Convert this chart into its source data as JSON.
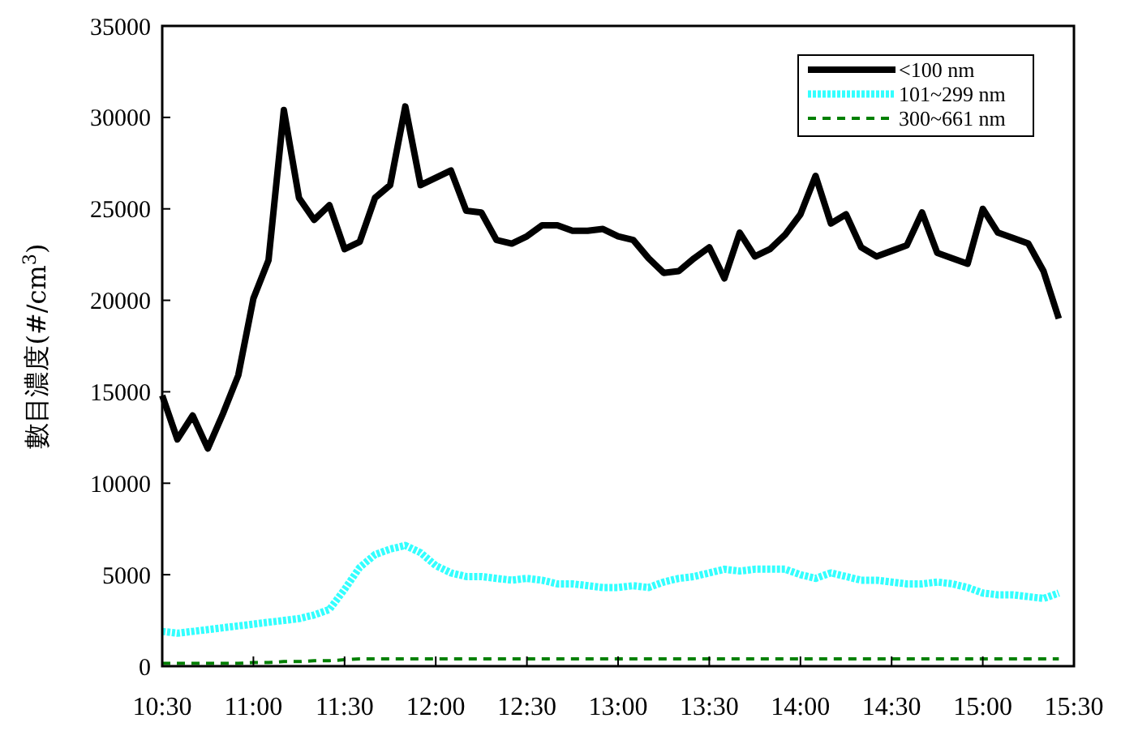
{
  "chart_data": {
    "type": "line",
    "ylabel": "數目濃度(#/cm$^{3}$)",
    "x": [
      10.5,
      10.583,
      10.667,
      10.75,
      10.833,
      10.917,
      11,
      11.083,
      11.167,
      11.25,
      11.333,
      11.417,
      11.5,
      11.583,
      11.667,
      11.75,
      11.833,
      11.917,
      12,
      12.083,
      12.167,
      12.25,
      12.333,
      12.417,
      12.5,
      12.583,
      12.667,
      12.75,
      12.833,
      12.917,
      13,
      13.083,
      13.167,
      13.25,
      13.333,
      13.417,
      13.5,
      13.583,
      13.667,
      13.75,
      13.833,
      13.917,
      14,
      14.083,
      14.167,
      14.25,
      14.333,
      14.417,
      14.5,
      14.583,
      14.667,
      14.75,
      14.833,
      14.917,
      15,
      15.083,
      15.167,
      15.25,
      15.333,
      15.417
    ],
    "series": [
      {
        "name": "<100 nm",
        "color": "#000000",
        "line_style": "solid",
        "values": [
          14800,
          12400,
          13700,
          11900,
          13800,
          15900,
          20100,
          22200,
          30400,
          25600,
          24400,
          25200,
          22800,
          23200,
          25600,
          26300,
          30600,
          26300,
          26700,
          27100,
          24900,
          24800,
          23300,
          23100,
          23500,
          24100,
          24100,
          23800,
          23800,
          23900,
          23500,
          23300,
          22300,
          21500,
          21600,
          22300,
          22900,
          21200,
          23700,
          22400,
          22800,
          23600,
          24700,
          26800,
          24200,
          24700,
          22900,
          22400,
          22700,
          23000,
          24800,
          22600,
          22300,
          22000,
          25000,
          23700,
          23400,
          23100,
          21600,
          19000
        ]
      },
      {
        "name": "101~299 nm",
        "color": "#33ffff",
        "line_style": "dotted",
        "values": [
          1900,
          1800,
          1900,
          2000,
          2100,
          2200,
          2300,
          2400,
          2500,
          2600,
          2800,
          3100,
          4200,
          5400,
          6100,
          6400,
          6600,
          6200,
          5500,
          5100,
          4900,
          4900,
          4800,
          4700,
          4800,
          4700,
          4500,
          4500,
          4400,
          4300,
          4300,
          4400,
          4300,
          4600,
          4800,
          4900,
          5100,
          5300,
          5200,
          5300,
          5300,
          5300,
          5000,
          4800,
          5100,
          4900,
          4700,
          4700,
          4600,
          4500,
          4500,
          4600,
          4500,
          4300,
          4000,
          3900,
          3900,
          3800,
          3700,
          4000
        ]
      },
      {
        "name": "300~661 nm",
        "color": "#008000",
        "line_style": "dashed",
        "values": [
          150,
          150,
          150,
          150,
          150,
          150,
          200,
          200,
          250,
          250,
          300,
          300,
          350,
          400,
          400,
          400,
          400,
          400,
          400,
          400,
          400,
          400,
          400,
          400,
          400,
          400,
          400,
          400,
          400,
          400,
          400,
          400,
          400,
          400,
          400,
          400,
          400,
          400,
          400,
          400,
          400,
          400,
          400,
          400,
          400,
          400,
          400,
          400,
          400,
          400,
          400,
          400,
          400,
          400,
          400,
          400,
          400,
          400,
          400,
          400
        ]
      }
    ],
    "xlim": [
      10.5,
      15.5
    ],
    "xticks": [
      {
        "value": 10.5,
        "label": "10:30"
      },
      {
        "value": 11,
        "label": "11:00"
      },
      {
        "value": 11.5,
        "label": "11:30"
      },
      {
        "value": 12,
        "label": "12:00"
      },
      {
        "value": 12.5,
        "label": "12:30"
      },
      {
        "value": 13,
        "label": "13:00"
      },
      {
        "value": 13.5,
        "label": "13:30"
      },
      {
        "value": 14,
        "label": "14:00"
      },
      {
        "value": 14.5,
        "label": "14:30"
      },
      {
        "value": 15,
        "label": "15:00"
      },
      {
        "value": 15.5,
        "label": "15:30"
      }
    ],
    "ylim": [
      0,
      35000
    ],
    "yticks": [
      0,
      5000,
      10000,
      15000,
      20000,
      25000,
      30000,
      35000
    ],
    "legend": "top right",
    "grid": false
  }
}
